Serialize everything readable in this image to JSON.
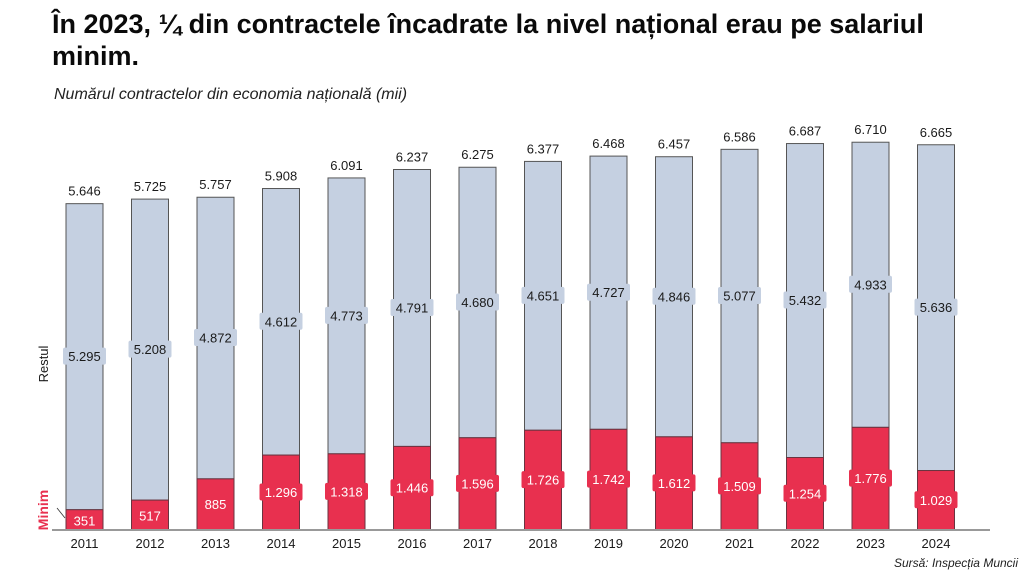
{
  "header": {
    "title": "În 2023, ¼ din contractele încadrate la nivel național erau pe salariul minim.",
    "subtitle": "Numărul contractelor din economia națională (mii)"
  },
  "footer": {
    "source": "Sursă: Inspecția Muncii"
  },
  "colors": {
    "minim": "#e8304f",
    "restul": "#c5d0e1",
    "bar_outline": "#555555",
    "minim_label": "#e8304f",
    "axis": "#999999"
  },
  "chart_data": {
    "type": "bar",
    "stacked": true,
    "title": "În 2023, ¼ din contractele încadrate la nivel național erau pe salariul minim.",
    "subtitle": "Numărul contractelor din economia națională (mii)",
    "xlabel": "",
    "ylabel": "",
    "categories": [
      "2011",
      "2012",
      "2013",
      "2014",
      "2015",
      "2016",
      "2017",
      "2018",
      "2019",
      "2020",
      "2021",
      "2022",
      "2023",
      "2024"
    ],
    "series": [
      {
        "name": "Minim",
        "values": [
          351,
          517,
          885,
          1296,
          1318,
          1446,
          1596,
          1726,
          1742,
          1612,
          1509,
          1254,
          1776,
          1029
        ],
        "labels": [
          "351",
          "517",
          "885",
          "1.296",
          "1.318",
          "1.446",
          "1.596",
          "1.726",
          "1.742",
          "1.612",
          "1.509",
          "1.254",
          "1.776",
          "1.029"
        ]
      },
      {
        "name": "Restul",
        "values": [
          5295,
          5208,
          4872,
          4612,
          4773,
          4791,
          4680,
          4651,
          4727,
          4846,
          5077,
          5432,
          4933,
          5636
        ],
        "labels": [
          "5.295",
          "5.208",
          "4.872",
          "4.612",
          "4.773",
          "4.791",
          "4.680",
          "4.651",
          "4.727",
          "4.846",
          "5.077",
          "5.432",
          "4.933",
          "5.636"
        ]
      }
    ],
    "totals": [
      5646,
      5725,
      5757,
      5908,
      6091,
      6237,
      6275,
      6377,
      6468,
      6457,
      6586,
      6687,
      6710,
      6665
    ],
    "total_labels": [
      "5.646",
      "5.725",
      "5.757",
      "5.908",
      "6.091",
      "6.237",
      "6.275",
      "6.377",
      "6.468",
      "6.457",
      "6.586",
      "6.687",
      "6.710",
      "6.665"
    ],
    "legend": [
      {
        "name": "Restul",
        "placement": "left, rotated along upper bar section"
      },
      {
        "name": "Minim",
        "placement": "left, rotated along bottom bar section"
      }
    ],
    "grid": false,
    "ylim": [
      0,
      7000
    ]
  }
}
